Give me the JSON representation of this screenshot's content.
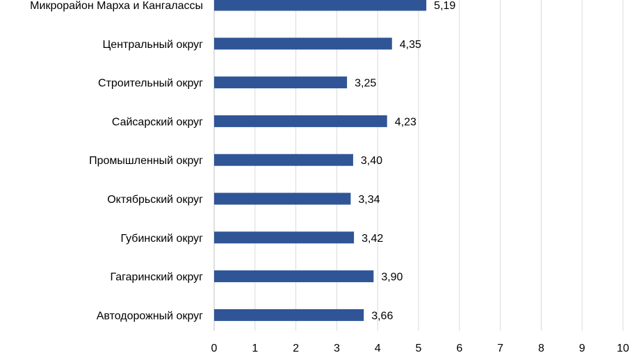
{
  "chart_data": {
    "type": "bar",
    "orientation": "horizontal",
    "categories": [
      "Микрорайон Марха и Кангалассы",
      "Центральный округ",
      "Строительный округ",
      "Сайсарский округ",
      "Промышленный округ",
      "Октябрьский округ",
      "Губинский округ",
      "Гагаринский округ",
      "Автодорожный округ"
    ],
    "values": [
      5.19,
      4.35,
      3.25,
      4.23,
      3.4,
      3.34,
      3.42,
      3.9,
      3.66
    ],
    "value_labels": [
      "5,19",
      "4,35",
      "3,25",
      "4,23",
      "3,40",
      "3,34",
      "3,42",
      "3,90",
      "3,66"
    ],
    "xlim": [
      0,
      10
    ],
    "x_ticks": [
      "0",
      "1",
      "2",
      "3",
      "4",
      "5",
      "6",
      "7",
      "8",
      "9",
      "10"
    ],
    "grid": "vertical",
    "legend": "none",
    "bar_color": "#2f5597",
    "grid_color": "#d9d9d9"
  }
}
